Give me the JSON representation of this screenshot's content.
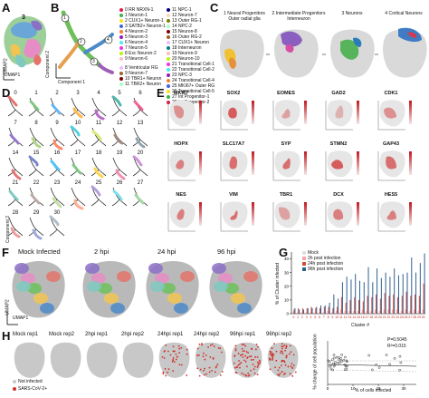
{
  "panel_letters": {
    "A": "A",
    "B": "B",
    "C": "C",
    "D": "D",
    "E": "E",
    "F": "F",
    "G": "G",
    "H": "H"
  },
  "panelA": {
    "ylabel": "UMAP2",
    "xlabel": "UMAP1",
    "big_number": "3"
  },
  "panelB": {
    "xlabel": "Component 1",
    "ylabel": "Component 2",
    "path_numbers": [
      "1",
      "2",
      "3",
      "4"
    ],
    "legend_col1": [
      "0 RR NRXN-1",
      "1 Neuron-1",
      "2 CUX1+ Neuron-1",
      "3 SATB2+ Neuron-1",
      "4 Neuron-2",
      "5 Neuron-3",
      "6 Neuron-4",
      "7 Neuron-5",
      "8 Exc Neuron-2",
      "9 Neuron-6",
      "",
      "8 Ventricular RG",
      "9 Neuron-7",
      "10 TBR1+ Neuron",
      "11 TBR2+ Neuron"
    ],
    "legend_col2": [
      "11 NPC-1",
      "12 Neuron-7",
      "13 Outer RG-1",
      "14 NPC-2",
      "15 Neuron-8",
      "16 Outer RG-2",
      "17 CUX1+ Neuron",
      "18 Interneuron",
      "19 Neuron-9",
      "20 Neuron-10",
      "21 Transitional Cell-1",
      "22 Transitional Cell-2",
      "23 NPC-3",
      "24 Transitional Cell-4",
      "25 MKI67+ Outer RG",
      "26 Transitional Cell-5",
      "27 Int Progenitor-1",
      "28 Int Progenitor-2"
    ]
  },
  "panelC": {
    "stages": [
      "1 Neural Progenitors\nOuter radial glia",
      "2 Intermediate Progenitors\nInterneuron",
      "3 Neurons",
      "4 Cortical Neurons"
    ]
  },
  "panelD": {
    "cluster_labels": [
      "0",
      "1",
      "2",
      "3",
      "4",
      "5",
      "6",
      "7",
      "8",
      "9",
      "10",
      "11",
      "12",
      "13",
      "14",
      "15",
      "16",
      "17",
      "18",
      "19",
      "20",
      "21",
      "22",
      "23",
      "24",
      "25",
      "26",
      "27",
      "28",
      "29",
      "30"
    ],
    "axis_label": "Component 2"
  },
  "panelE": {
    "genes": [
      "MKI67",
      "SOX2",
      "EOMES",
      "GAD2",
      "CDK1",
      "HOPX",
      "SLC17A7",
      "SYP",
      "STMN2",
      "GAP43",
      "NES",
      "VIM",
      "TBR1",
      "DCX",
      "HES5"
    ],
    "xlabel": "UMAP_1",
    "ylabel": "UMAP_2"
  },
  "panelF": {
    "titles": [
      "Mock Infected",
      "2 hpi",
      "24 hpi",
      "96 hpi"
    ],
    "ylabel": "UMAP2",
    "xlabel": "UMAP1"
  },
  "panelG": {
    "ylabel": "% of Cluster infected",
    "xlabel": "Cluster #",
    "legend": [
      "Mock",
      "2h post infection",
      "24h post infection",
      "96h post infection"
    ],
    "ytick_labels": [
      "0",
      "10",
      "20",
      "30",
      "40"
    ]
  },
  "chart_data": {
    "type": "bar",
    "categories": [
      "0",
      "1",
      "2",
      "3",
      "4",
      "5",
      "6",
      "7",
      "8",
      "9",
      "10",
      "11",
      "12",
      "13",
      "14",
      "15",
      "16",
      "17",
      "18",
      "19",
      "20",
      "21",
      "22",
      "23",
      "24",
      "25",
      "26",
      "27",
      "28",
      "29",
      "30"
    ],
    "series": [
      {
        "name": "Mock",
        "values": [
          0,
          0,
          0,
          0,
          0,
          0,
          0,
          0,
          0,
          0,
          0,
          0,
          0,
          0,
          0,
          0,
          0,
          0,
          0,
          0,
          0,
          0,
          0,
          0,
          0,
          0,
          0,
          0,
          0,
          0,
          0
        ]
      },
      {
        "name": "2h post infection",
        "values": [
          1,
          1,
          1,
          1,
          1,
          1,
          1,
          1,
          2,
          1,
          2,
          3,
          2,
          2,
          2,
          2,
          3,
          2,
          2,
          3,
          2,
          3,
          3,
          3,
          3,
          2,
          3,
          2,
          3,
          2,
          3
        ]
      },
      {
        "name": "24h post infection",
        "values": [
          3,
          4,
          4,
          4,
          5,
          4,
          4,
          5,
          5,
          4,
          5,
          12,
          8,
          10,
          12,
          10,
          9,
          13,
          12,
          14,
          11,
          15,
          13,
          14,
          12,
          13,
          16,
          13,
          14,
          13,
          22
        ]
      },
      {
        "name": "96h post infection",
        "values": [
          4,
          3,
          3,
          4,
          4,
          5,
          6,
          6,
          8,
          14,
          11,
          23,
          27,
          25,
          29,
          24,
          23,
          34,
          23,
          33,
          26,
          30,
          27,
          33,
          28,
          29,
          30,
          41,
          30,
          37,
          44
        ]
      }
    ],
    "ylim": [
      0,
      45
    ],
    "xlabel": "Cluster #",
    "ylabel": "% of Cluster infected"
  },
  "panelH": {
    "titles": [
      "Mock rep1",
      "Mock rep2",
      "2hpi rep1",
      "2hpi rep2",
      "24hpi rep1",
      "24hpi rep2",
      "96hpi rep1",
      "96hpi rep2"
    ],
    "legend": [
      "Not infected",
      "SARS-CoV-2+"
    ],
    "scatter_xlabel": "% of cells infected",
    "scatter_ylabel": "% change of cell population",
    "stats": [
      "P=0.5045",
      "R²=0.015"
    ],
    "xticks": [
      "0",
      "10",
      "20",
      "30"
    ]
  },
  "colors": {
    "mock": "#e0e0e0",
    "hpi2": "#f2a6a6",
    "hpi24": "#d24a3e",
    "hpi96": "#2f5f8f",
    "infected": "#d0302a",
    "gray": "#c8c8c8"
  }
}
